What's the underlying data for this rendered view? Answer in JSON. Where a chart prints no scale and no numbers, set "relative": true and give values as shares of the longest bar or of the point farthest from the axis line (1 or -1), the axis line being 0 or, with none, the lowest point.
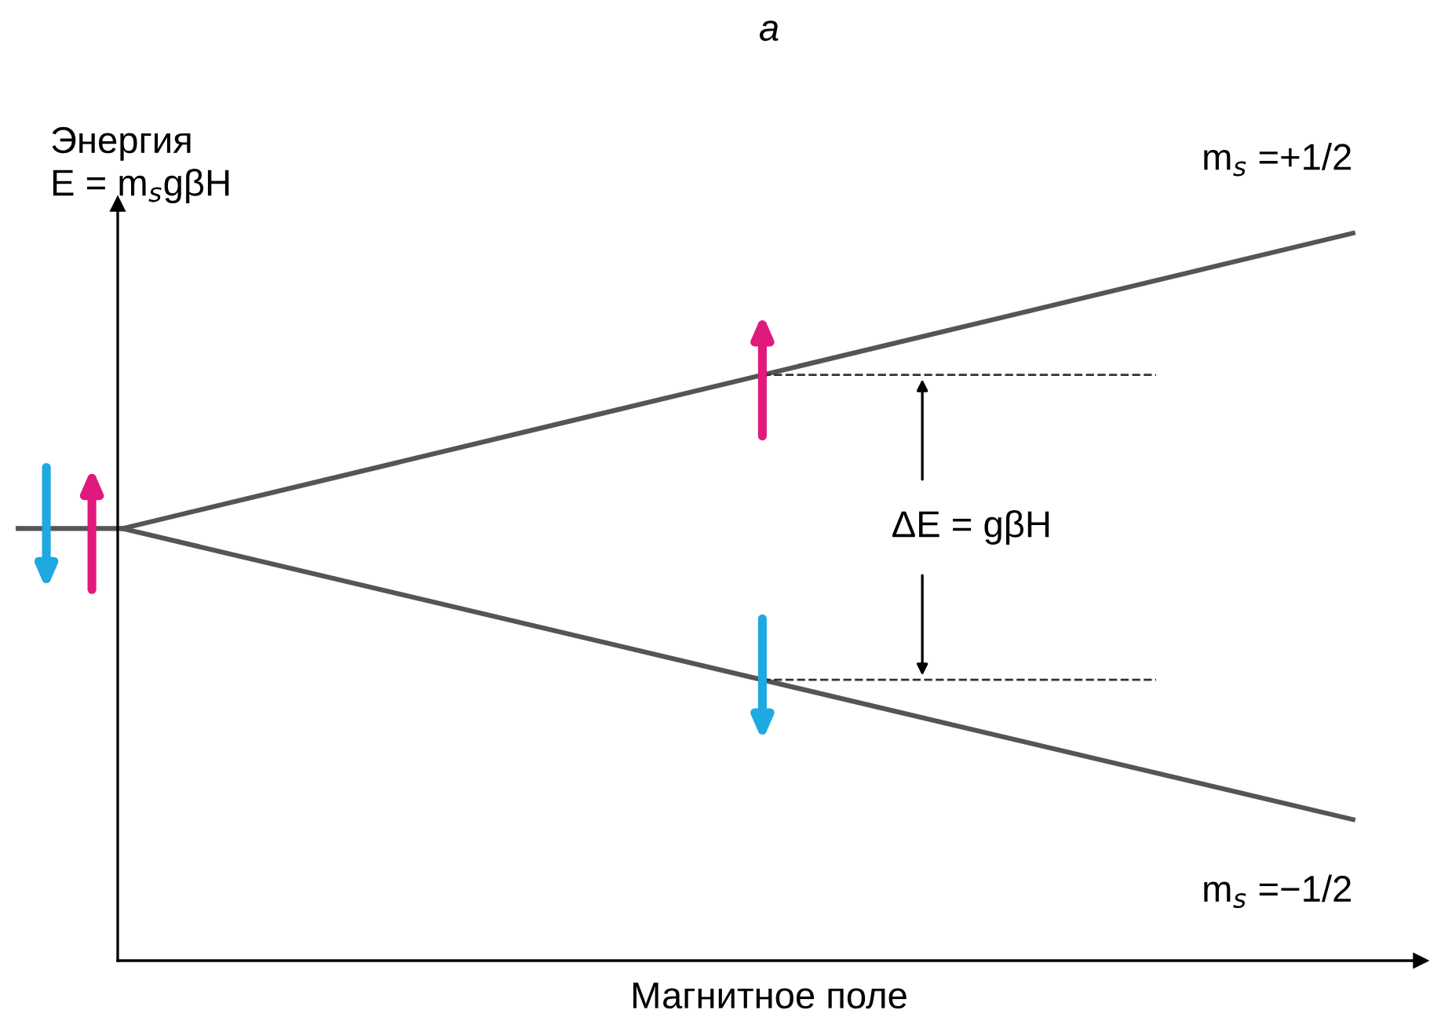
{
  "chart_data": {
    "type": "line",
    "title": "a",
    "ylabel": "Энергия\nE = m$_{s}$gβH",
    "xlabel": "Магнитное поле",
    "categories": [
      null,
      null
    ],
    "relative": true,
    "grid": false,
    "legend": false,
    "marker": "none",
    "line_style": "solid",
    "series": [
      {
        "color": "#555555",
        "values": [
          0.594,
          1
        ]
      },
      {
        "color": "#555555",
        "values": [
          0.594,
          0.194
        ]
      }
    ],
    "annotations": [
      "m$_{s}$ =+1/2",
      "m$_{s}$ =−1/2",
      "ΔE = gβH"
    ]
  }
}
